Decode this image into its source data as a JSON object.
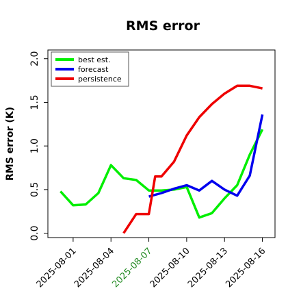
{
  "chart_data": {
    "type": "line",
    "title": "RMS error",
    "xlabel": "",
    "ylabel": "RMS error (K)",
    "x_ticks": [
      "2025-08-01",
      "2025-08-04",
      "2025-08-07",
      "2025-08-10",
      "2025-08-13",
      "2025-08-16"
    ],
    "x_tick_colors": [
      "#000000",
      "#000000",
      "#228B22",
      "#000000",
      "#000000",
      "#000000"
    ],
    "xlim": [
      "2025-07-30",
      "2025-08-17"
    ],
    "ylim": [
      -0.05,
      2.1
    ],
    "y_ticks": [
      0.0,
      0.5,
      1.0,
      1.5,
      2.0
    ],
    "y_tick_labels": [
      "0.0",
      "0.5",
      "1.0",
      "1.5",
      "2.0"
    ],
    "legend_position": "top-left",
    "series": [
      {
        "name": "best est.",
        "color": "#00ee00",
        "x": [
          "2025-07-31",
          "2025-08-01",
          "2025-08-02",
          "2025-08-03",
          "2025-08-04",
          "2025-08-05",
          "2025-08-06",
          "2025-08-07",
          "2025-08-08",
          "2025-08-09",
          "2025-08-10",
          "2025-08-11",
          "2025-08-12",
          "2025-08-13",
          "2025-08-14",
          "2025-08-15",
          "2025-08-16"
        ],
        "values": [
          0.48,
          0.32,
          0.33,
          0.46,
          0.78,
          0.63,
          0.61,
          0.49,
          0.49,
          0.5,
          0.53,
          0.18,
          0.23,
          0.4,
          0.55,
          0.9,
          1.19
        ]
      },
      {
        "name": "forecast",
        "color": "#0000ee",
        "x": [
          "2025-08-07",
          "2025-08-08",
          "2025-08-09",
          "2025-08-10",
          "2025-08-11",
          "2025-08-12",
          "2025-08-13",
          "2025-08-14",
          "2025-08-15",
          "2025-08-16"
        ],
        "values": [
          0.42,
          0.46,
          0.51,
          0.55,
          0.49,
          0.6,
          0.5,
          0.43,
          0.66,
          1.36
        ]
      },
      {
        "name": "persistence",
        "color": "#ee0000",
        "x": [
          "2025-08-05",
          "2025-08-06",
          "2025-08-07",
          "2025-08-07T12",
          "2025-08-08",
          "2025-08-09",
          "2025-08-10",
          "2025-08-11",
          "2025-08-12",
          "2025-08-13",
          "2025-08-14",
          "2025-08-15",
          "2025-08-16"
        ],
        "values": [
          0.0,
          0.22,
          0.22,
          0.65,
          0.65,
          0.82,
          1.12,
          1.33,
          1.48,
          1.6,
          1.69,
          1.69,
          1.66
        ]
      }
    ]
  }
}
